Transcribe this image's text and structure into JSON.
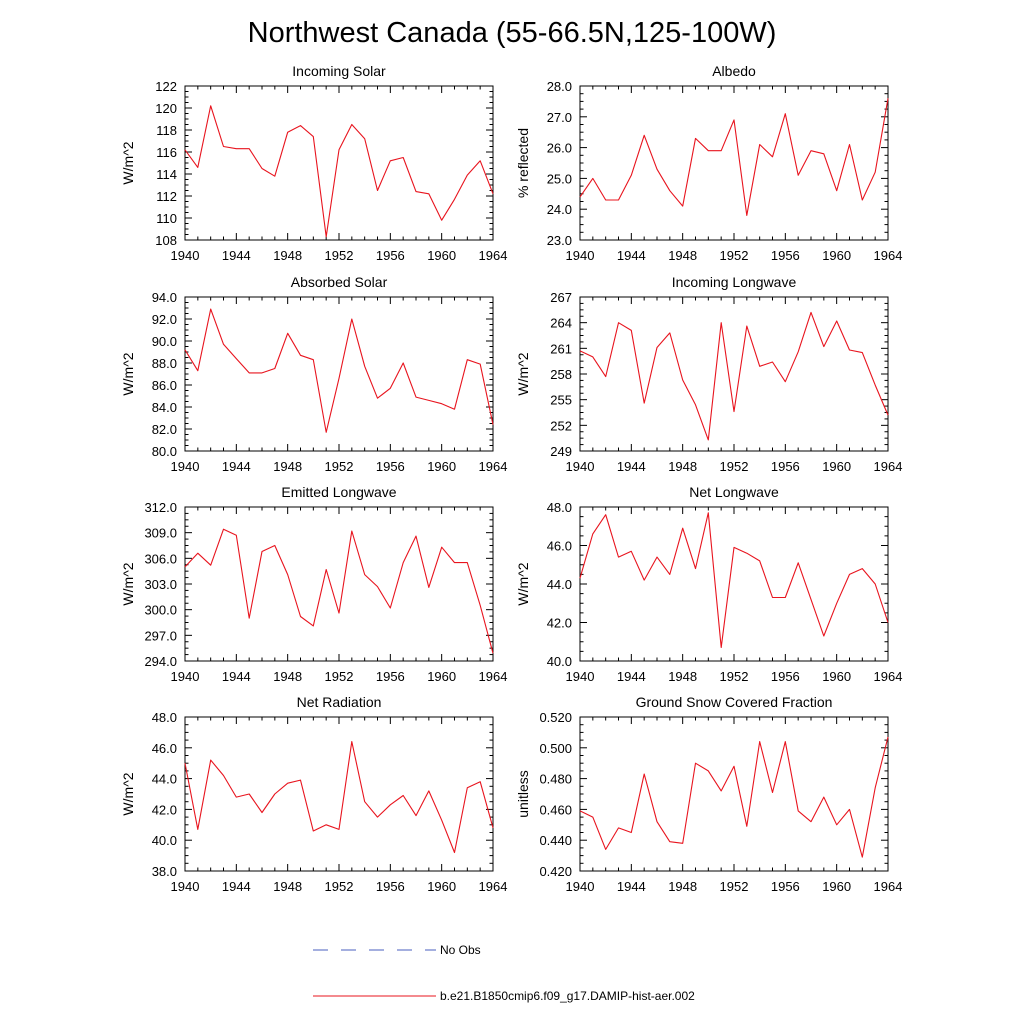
{
  "figure": {
    "title": "Northwest Canada (55-66.5N,125-100W)"
  },
  "legend": {
    "items": [
      {
        "label": "No Obs",
        "color": "#4a5fbf",
        "style": "dashed"
      },
      {
        "label": "b.e21.B1850cmip6.f09_g17.DAMIP-hist-aer.002",
        "color": "#e8141e",
        "style": "solid"
      }
    ]
  },
  "chart_data": [
    {
      "type": "line",
      "title": "Incoming Solar",
      "ylabel": "W/m^2",
      "xlim": [
        1940,
        1964
      ],
      "ylim": [
        108,
        122
      ],
      "xticks": [
        "1940",
        "1944",
        "1948",
        "1952",
        "1956",
        "1960",
        "1964"
      ],
      "yticks": [
        "108",
        "110",
        "112",
        "114",
        "116",
        "118",
        "120",
        "122"
      ],
      "series": [
        {
          "color": "#e8141e",
          "x": [
            1940,
            1941,
            1942,
            1943,
            1944,
            1945,
            1946,
            1947,
            1948,
            1949,
            1950,
            1951,
            1952,
            1953,
            1954,
            1955,
            1956,
            1957,
            1958,
            1959,
            1960,
            1961,
            1962,
            1963,
            1964
          ],
          "values": [
            116.2,
            114.6,
            120.2,
            116.5,
            116.3,
            116.3,
            114.5,
            113.8,
            117.8,
            118.4,
            117.4,
            108.3,
            116.2,
            118.5,
            117.2,
            112.5,
            115.2,
            115.5,
            112.4,
            112.2,
            109.8,
            111.7,
            113.9,
            115.2,
            112.2
          ]
        }
      ]
    },
    {
      "type": "line",
      "title": "Albedo",
      "ylabel": "% reflected",
      "xlim": [
        1940,
        1964
      ],
      "ylim": [
        23.0,
        28.0
      ],
      "xticks": [
        "1940",
        "1944",
        "1948",
        "1952",
        "1956",
        "1960",
        "1964"
      ],
      "yticks": [
        "23.0",
        "24.0",
        "25.0",
        "26.0",
        "27.0",
        "28.0"
      ],
      "series": [
        {
          "color": "#e8141e",
          "x": [
            1940,
            1941,
            1942,
            1943,
            1944,
            1945,
            1946,
            1947,
            1948,
            1949,
            1950,
            1951,
            1952,
            1953,
            1954,
            1955,
            1956,
            1957,
            1958,
            1959,
            1960,
            1961,
            1962,
            1963,
            1964
          ],
          "values": [
            24.4,
            25.0,
            24.3,
            24.3,
            25.1,
            26.4,
            25.3,
            24.6,
            24.1,
            26.3,
            25.9,
            25.9,
            26.9,
            23.8,
            26.1,
            25.7,
            27.1,
            25.1,
            25.9,
            25.8,
            24.6,
            26.1,
            24.3,
            25.2,
            27.6
          ]
        }
      ]
    },
    {
      "type": "line",
      "title": "Absorbed Solar",
      "ylabel": "W/m^2",
      "xlim": [
        1940,
        1964
      ],
      "ylim": [
        80.0,
        94.0
      ],
      "xticks": [
        "1940",
        "1944",
        "1948",
        "1952",
        "1956",
        "1960",
        "1964"
      ],
      "yticks": [
        "80.0",
        "82.0",
        "84.0",
        "86.0",
        "88.0",
        "90.0",
        "92.0",
        "94.0"
      ],
      "series": [
        {
          "color": "#e8141e",
          "x": [
            1940,
            1941,
            1942,
            1943,
            1944,
            1945,
            1946,
            1947,
            1948,
            1949,
            1950,
            1951,
            1952,
            1953,
            1954,
            1955,
            1956,
            1957,
            1958,
            1959,
            1960,
            1961,
            1962,
            1963,
            1964
          ],
          "values": [
            89.2,
            87.3,
            92.9,
            89.7,
            88.4,
            87.1,
            87.1,
            87.5,
            90.7,
            88.7,
            88.3,
            81.7,
            86.6,
            92.0,
            87.7,
            84.8,
            85.7,
            88.0,
            84.9,
            84.6,
            84.3,
            83.8,
            88.3,
            87.9,
            82.4
          ]
        }
      ]
    },
    {
      "type": "line",
      "title": "Incoming Longwave",
      "ylabel": "W/m^2",
      "xlim": [
        1940,
        1964
      ],
      "ylim": [
        249,
        267
      ],
      "xticks": [
        "1940",
        "1944",
        "1948",
        "1952",
        "1956",
        "1960",
        "1964"
      ],
      "yticks": [
        "249",
        "252",
        "255",
        "258",
        "261",
        "264",
        "267"
      ],
      "series": [
        {
          "color": "#e8141e",
          "x": [
            1940,
            1941,
            1942,
            1943,
            1944,
            1945,
            1946,
            1947,
            1948,
            1949,
            1950,
            1951,
            1952,
            1953,
            1954,
            1955,
            1956,
            1957,
            1958,
            1959,
            1960,
            1961,
            1962,
            1963,
            1964
          ],
          "values": [
            260.7,
            260.0,
            257.7,
            264.0,
            263.1,
            254.6,
            261.1,
            262.8,
            257.3,
            254.4,
            250.3,
            264.0,
            253.6,
            263.6,
            258.9,
            259.4,
            257.1,
            260.6,
            265.2,
            261.2,
            264.2,
            260.8,
            260.5,
            256.7,
            253.2
          ]
        }
      ]
    },
    {
      "type": "line",
      "title": "Emitted Longwave",
      "ylabel": "W/m^2",
      "xlim": [
        1940,
        1964
      ],
      "ylim": [
        294.0,
        312.0
      ],
      "xticks": [
        "1940",
        "1944",
        "1948",
        "1952",
        "1956",
        "1960",
        "1964"
      ],
      "yticks": [
        "294.0",
        "297.0",
        "300.0",
        "303.0",
        "306.0",
        "309.0",
        "312.0"
      ],
      "series": [
        {
          "color": "#e8141e",
          "x": [
            1940,
            1941,
            1942,
            1943,
            1944,
            1945,
            1946,
            1947,
            1948,
            1949,
            1950,
            1951,
            1952,
            1953,
            1954,
            1955,
            1956,
            1957,
            1958,
            1959,
            1960,
            1961,
            1962,
            1963,
            1964
          ],
          "values": [
            305.0,
            306.6,
            305.2,
            309.4,
            308.7,
            299.0,
            306.8,
            307.5,
            304.1,
            299.2,
            298.1,
            304.7,
            299.6,
            309.2,
            304.1,
            302.7,
            300.2,
            305.5,
            308.6,
            302.6,
            307.3,
            305.5,
            305.5,
            300.5,
            294.9
          ]
        }
      ]
    },
    {
      "type": "line",
      "title": "Net Longwave",
      "ylabel": "W/m^2",
      "xlim": [
        1940,
        1964
      ],
      "ylim": [
        40.0,
        48.0
      ],
      "xticks": [
        "1940",
        "1944",
        "1948",
        "1952",
        "1956",
        "1960",
        "1964"
      ],
      "yticks": [
        "40.0",
        "42.0",
        "44.0",
        "46.0",
        "48.0"
      ],
      "series": [
        {
          "color": "#e8141e",
          "x": [
            1940,
            1941,
            1942,
            1943,
            1944,
            1945,
            1946,
            1947,
            1948,
            1949,
            1950,
            1951,
            1952,
            1953,
            1954,
            1955,
            1956,
            1957,
            1958,
            1959,
            1960,
            1961,
            1962,
            1963,
            1964
          ],
          "values": [
            44.3,
            46.6,
            47.6,
            45.4,
            45.7,
            44.2,
            45.4,
            44.5,
            46.9,
            44.8,
            47.7,
            40.7,
            45.9,
            45.6,
            45.2,
            43.3,
            43.3,
            45.1,
            43.2,
            41.3,
            43.0,
            44.5,
            44.8,
            44.0,
            42.0
          ]
        }
      ]
    },
    {
      "type": "line",
      "title": "Net Radiation",
      "ylabel": "W/m^2",
      "xlim": [
        1940,
        1964
      ],
      "ylim": [
        38.0,
        48.0
      ],
      "xticks": [
        "1940",
        "1944",
        "1948",
        "1952",
        "1956",
        "1960",
        "1964"
      ],
      "yticks": [
        "38.0",
        "40.0",
        "42.0",
        "44.0",
        "46.0",
        "48.0"
      ],
      "series": [
        {
          "color": "#e8141e",
          "x": [
            1940,
            1941,
            1942,
            1943,
            1944,
            1945,
            1946,
            1947,
            1948,
            1949,
            1950,
            1951,
            1952,
            1953,
            1954,
            1955,
            1956,
            1957,
            1958,
            1959,
            1960,
            1961,
            1962,
            1963,
            1964
          ],
          "values": [
            45.0,
            40.7,
            45.2,
            44.2,
            42.8,
            43.0,
            41.8,
            43.0,
            43.7,
            43.9,
            40.6,
            41.0,
            40.7,
            46.4,
            42.5,
            41.5,
            42.3,
            42.9,
            41.6,
            43.2,
            41.3,
            39.2,
            43.4,
            43.8,
            40.8
          ]
        }
      ]
    },
    {
      "type": "line",
      "title": "Ground Snow Covered Fraction",
      "ylabel": "unitless",
      "xlim": [
        1940,
        1964
      ],
      "ylim": [
        0.42,
        0.52
      ],
      "xticks": [
        "1940",
        "1944",
        "1948",
        "1952",
        "1956",
        "1960",
        "1964"
      ],
      "yticks": [
        "0.420",
        "0.440",
        "0.460",
        "0.480",
        "0.500",
        "0.520"
      ],
      "series": [
        {
          "color": "#e8141e",
          "x": [
            1940,
            1941,
            1942,
            1943,
            1944,
            1945,
            1946,
            1947,
            1948,
            1949,
            1950,
            1951,
            1952,
            1953,
            1954,
            1955,
            1956,
            1957,
            1958,
            1959,
            1960,
            1961,
            1962,
            1963,
            1964
          ],
          "values": [
            0.459,
            0.455,
            0.434,
            0.448,
            0.445,
            0.483,
            0.452,
            0.439,
            0.438,
            0.49,
            0.485,
            0.472,
            0.488,
            0.449,
            0.504,
            0.471,
            0.504,
            0.459,
            0.452,
            0.468,
            0.45,
            0.46,
            0.429,
            0.474,
            0.507
          ]
        }
      ]
    }
  ]
}
